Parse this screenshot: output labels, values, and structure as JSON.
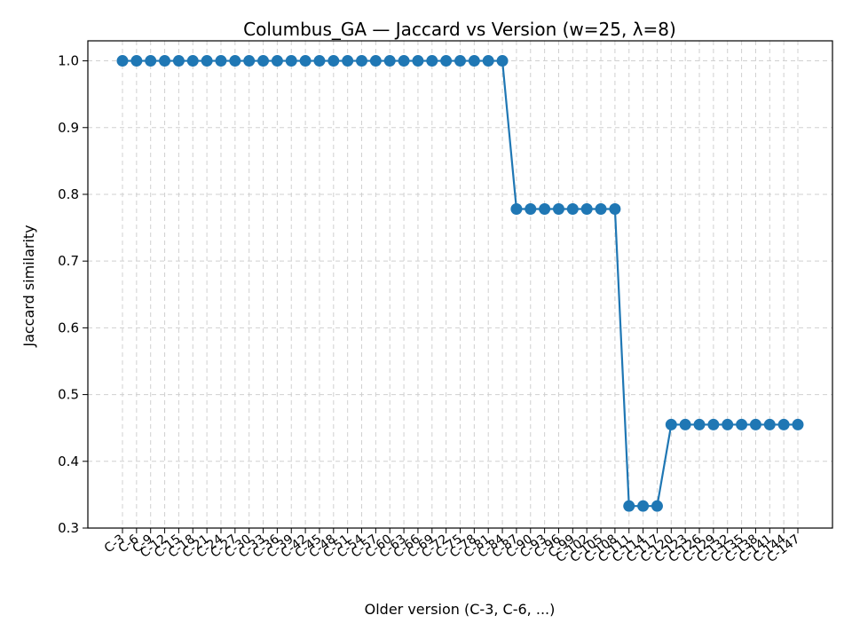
{
  "chart_data": {
    "type": "line",
    "title": "Columbus_GA — Jaccard vs Version (w=25, λ=8)",
    "xlabel": "Older version (C-3, C-6, ...)",
    "ylabel": "Jaccard similarity",
    "ylim": [
      0.3,
      1.03
    ],
    "yticks": [
      0.3,
      0.4,
      0.5,
      0.6,
      0.7,
      0.8,
      0.9,
      1.0
    ],
    "grid": true,
    "colors": {
      "series": "#1f77b4"
    },
    "categories": [
      "C-3",
      "C-6",
      "C-9",
      "C-12",
      "C-15",
      "C-18",
      "C-21",
      "C-24",
      "C-27",
      "C-30",
      "C-33",
      "C-36",
      "C-39",
      "C-42",
      "C-45",
      "C-48",
      "C-51",
      "C-54",
      "C-57",
      "C-60",
      "C-63",
      "C-66",
      "C-69",
      "C-72",
      "C-75",
      "C-78",
      "C-81",
      "C-84",
      "C-87",
      "C-90",
      "C-93",
      "C-96",
      "C-99",
      "C-102",
      "C-105",
      "C-108",
      "C-111",
      "C-114",
      "C-117",
      "C-120",
      "C-123",
      "C-126",
      "C-129",
      "C-132",
      "C-135",
      "C-138",
      "C-141",
      "C-144",
      "C-147"
    ],
    "series": [
      {
        "values": [
          1.0,
          1.0,
          1.0,
          1.0,
          1.0,
          1.0,
          1.0,
          1.0,
          1.0,
          1.0,
          1.0,
          1.0,
          1.0,
          1.0,
          1.0,
          1.0,
          1.0,
          1.0,
          1.0,
          1.0,
          1.0,
          1.0,
          1.0,
          1.0,
          1.0,
          1.0,
          1.0,
          1.0,
          0.778,
          0.778,
          0.778,
          0.778,
          0.778,
          0.778,
          0.778,
          0.778,
          0.333,
          0.333,
          0.333,
          0.455,
          0.455,
          0.455,
          0.455,
          0.455,
          0.455,
          0.455,
          0.455,
          0.455,
          0.455
        ]
      }
    ]
  }
}
